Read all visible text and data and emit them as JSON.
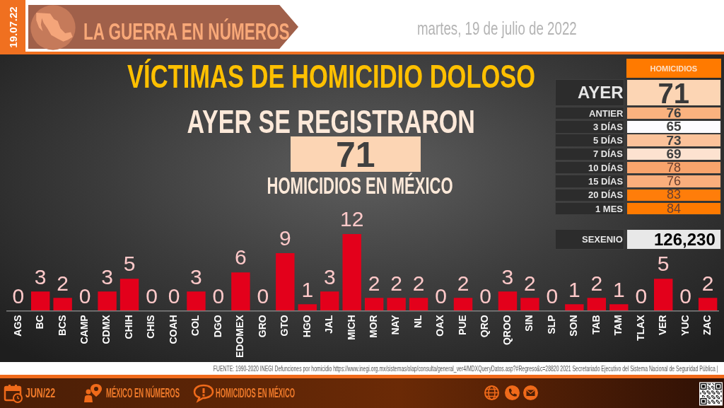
{
  "chart_data": [
    {
      "type": "bar",
      "title": "VÍCTIMAS DE HOMICIDIO DOLOSO",
      "categories": [
        "AGS",
        "BC",
        "BCS",
        "CAMP",
        "CDMX",
        "CHIH",
        "CHIS",
        "COAH",
        "COL",
        "DGO",
        "EDOMEX",
        "GRO",
        "GTO",
        "HGO",
        "JAL",
        "MICH",
        "MOR",
        "NAY",
        "NL",
        "OAX",
        "PUE",
        "QRO",
        "QROO",
        "SIN",
        "SLP",
        "SON",
        "TAB",
        "TAM",
        "TLAX",
        "VER",
        "YUC",
        "ZAC"
      ],
      "values": [
        0,
        3,
        2,
        0,
        3,
        5,
        0,
        0,
        3,
        0,
        6,
        0,
        9,
        1,
        3,
        12,
        2,
        2,
        2,
        0,
        2,
        0,
        3,
        2,
        0,
        1,
        2,
        1,
        0,
        5,
        0,
        2
      ],
      "color": "#e3001b",
      "data_labels": true,
      "annotations": [
        "19.07.22",
        "LA GUERRA EN NÚMEROS",
        "martes, 19 de julio de 2022",
        "AYER SE REGISTRARON",
        "71",
        "HOMICIDIOS EN MÉXICO",
        "FUENTE: 1990-2020 INEGI Defunciones por homicidio https://www.inegi.org.mx/sistemas/olap/consulta/general_ver4/MDXQueryDatos.asp?#Regreso&c=28820  2021 Secretariado Ejecutivo del Sistema Nacional de Seguridad Pública |",
        "JUN/22",
        "MÉXICO EN NÚMEROS",
        "HOMICIDIOS EN MÉXICO"
      ]
    },
    {
      "type": "other",
      "title": "HOMICIDIOS",
      "annotations": [
        "AYER",
        "71",
        "ANTIER",
        "76",
        "3 DÍAS",
        "65",
        "5 DÍAS",
        "73",
        "7 DÍAS",
        "69",
        "10 DÍAS",
        "78",
        "15 DÍAS",
        "76",
        "20 DÍAS",
        "83",
        "1 MES",
        "84",
        "SEXENIO",
        "126,230"
      ]
    }
  ]
}
